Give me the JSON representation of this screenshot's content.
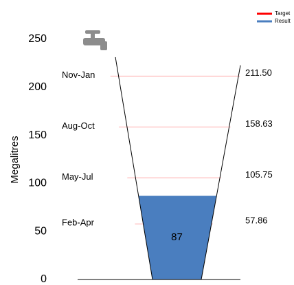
{
  "chart_data": {
    "type": "funnel",
    "ylabel": "Megalitres",
    "ylim": [
      0,
      250
    ],
    "yticks": [
      0,
      50,
      100,
      150,
      200,
      250
    ],
    "series": [
      {
        "name": "Target",
        "color": "#ff0000",
        "categories": [
          "Feb-Apr",
          "May-Jul",
          "Aug-Oct",
          "Nov-Jan"
        ],
        "values": [
          57.86,
          105.75,
          158.63,
          211.5
        ],
        "value_labels": [
          "57.86",
          "105.75",
          "158.63",
          "211.50"
        ]
      },
      {
        "name": "Result",
        "color": "#4a7ebf",
        "values": [
          87
        ]
      }
    ]
  }
}
